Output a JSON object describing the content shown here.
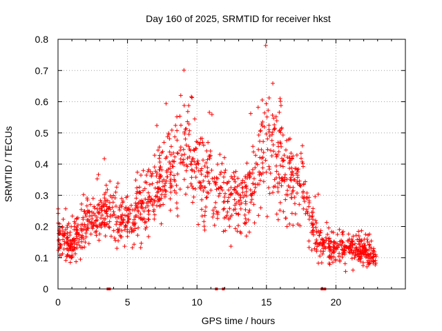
{
  "chart_data": {
    "type": "scatter",
    "title": "Day 160 of 2025, SRMTID for receiver hkst",
    "xlabel": "GPS time / hours",
    "ylabel": "SRMTID / TECUs",
    "xlim": [
      0,
      25
    ],
    "ylim": [
      0,
      0.8
    ],
    "xticks": [
      0,
      5,
      10,
      15,
      20
    ],
    "yticks": [
      0,
      0.1,
      0.2,
      0.3,
      0.4,
      0.5,
      0.6,
      0.7,
      0.8
    ],
    "xtick_labels": [
      "0",
      "5",
      "10",
      "15",
      "20"
    ],
    "ytick_labels": [
      "0",
      "0.1",
      "0.2",
      "0.3",
      "0.4",
      "0.5",
      "0.6",
      "0.7",
      "0.8"
    ],
    "grid": true,
    "marker": "+",
    "color": "#ff0000",
    "zero_markers_x": [
      3.6,
      3.7,
      11.4,
      11.9,
      19.0,
      19.2
    ],
    "trend": [
      {
        "x": 0.0,
        "y": 0.19
      },
      {
        "x": 0.5,
        "y": 0.16
      },
      {
        "x": 1.0,
        "y": 0.14
      },
      {
        "x": 1.5,
        "y": 0.19
      },
      {
        "x": 2.0,
        "y": 0.21
      },
      {
        "x": 2.5,
        "y": 0.22
      },
      {
        "x": 3.0,
        "y": 0.24
      },
      {
        "x": 3.5,
        "y": 0.26
      },
      {
        "x": 4.0,
        "y": 0.24
      },
      {
        "x": 4.5,
        "y": 0.22
      },
      {
        "x": 5.0,
        "y": 0.22
      },
      {
        "x": 5.5,
        "y": 0.24
      },
      {
        "x": 6.0,
        "y": 0.26
      },
      {
        "x": 6.5,
        "y": 0.3
      },
      {
        "x": 7.0,
        "y": 0.33
      },
      {
        "x": 7.5,
        "y": 0.34
      },
      {
        "x": 8.0,
        "y": 0.36
      },
      {
        "x": 8.5,
        "y": 0.4
      },
      {
        "x": 9.0,
        "y": 0.45
      },
      {
        "x": 9.5,
        "y": 0.44
      },
      {
        "x": 10.0,
        "y": 0.38
      },
      {
        "x": 10.5,
        "y": 0.36
      },
      {
        "x": 11.0,
        "y": 0.34
      },
      {
        "x": 11.5,
        "y": 0.31
      },
      {
        "x": 12.0,
        "y": 0.3
      },
      {
        "x": 12.5,
        "y": 0.28
      },
      {
        "x": 13.0,
        "y": 0.27
      },
      {
        "x": 13.5,
        "y": 0.29
      },
      {
        "x": 14.0,
        "y": 0.33
      },
      {
        "x": 14.5,
        "y": 0.4
      },
      {
        "x": 15.0,
        "y": 0.43
      },
      {
        "x": 15.5,
        "y": 0.44
      },
      {
        "x": 16.0,
        "y": 0.4
      },
      {
        "x": 16.5,
        "y": 0.37
      },
      {
        "x": 17.0,
        "y": 0.36
      },
      {
        "x": 17.5,
        "y": 0.33
      },
      {
        "x": 18.0,
        "y": 0.26
      },
      {
        "x": 18.5,
        "y": 0.18
      },
      {
        "x": 19.0,
        "y": 0.14
      },
      {
        "x": 19.5,
        "y": 0.13
      },
      {
        "x": 20.0,
        "y": 0.13
      },
      {
        "x": 20.5,
        "y": 0.14
      },
      {
        "x": 21.0,
        "y": 0.14
      },
      {
        "x": 21.5,
        "y": 0.13
      },
      {
        "x": 22.0,
        "y": 0.12
      },
      {
        "x": 22.5,
        "y": 0.11
      },
      {
        "x": 22.9,
        "y": 0.1
      }
    ],
    "x_range_points": [
      0.0,
      22.9
    ],
    "point_count": 1400,
    "random_seed": 160
  }
}
